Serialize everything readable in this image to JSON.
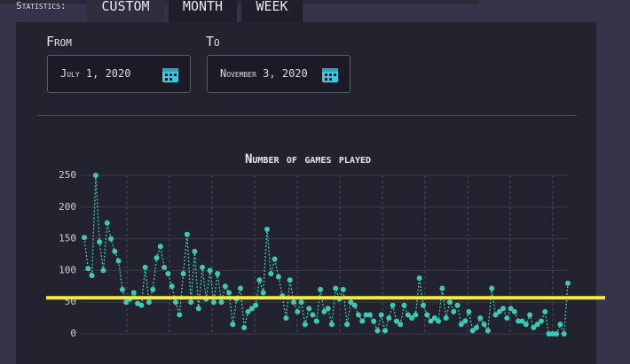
{
  "header": {
    "label": "Statistics:",
    "tabs": [
      "CUSTOM",
      "MONTH",
      "WEEK"
    ],
    "active_tab": 0
  },
  "filters": {
    "from_label": "From",
    "from_value": "July 1, 2020",
    "to_label": "To",
    "to_value": "November 3, 2020"
  },
  "chart": {
    "type": "line",
    "title": "Number of games played",
    "color": "#3ec8b6",
    "ylim": [
      0,
      250
    ],
    "yticks": [
      0,
      50,
      100,
      150,
      200,
      250
    ],
    "grid": true,
    "values": [
      152,
      103,
      92,
      250,
      145,
      100,
      175,
      150,
      130,
      115,
      70,
      50,
      55,
      65,
      48,
      45,
      105,
      50,
      70,
      120,
      138,
      105,
      95,
      75,
      50,
      30,
      95,
      157,
      50,
      130,
      40,
      105,
      55,
      100,
      50,
      95,
      50,
      75,
      65,
      15,
      55,
      72,
      10,
      35,
      40,
      45,
      85,
      65,
      165,
      95,
      118,
      90,
      60,
      25,
      85,
      50,
      35,
      50,
      15,
      40,
      30,
      20,
      70,
      35,
      40,
      15,
      72,
      55,
      70,
      15,
      50,
      45,
      30,
      20,
      30,
      30,
      20,
      5,
      30,
      5,
      25,
      45,
      20,
      15,
      45,
      30,
      25,
      30,
      88,
      45,
      30,
      20,
      25,
      20,
      72,
      25,
      50,
      35,
      45,
      15,
      20,
      35,
      5,
      10,
      25,
      15,
      5,
      72,
      30,
      35,
      40,
      25,
      40,
      35,
      20,
      20,
      15,
      30,
      10,
      15,
      20,
      35,
      0,
      0,
      0,
      15,
      0,
      80
    ],
    "highlight_line": {
      "value": 57,
      "color": "#f2ea3c"
    }
  }
}
